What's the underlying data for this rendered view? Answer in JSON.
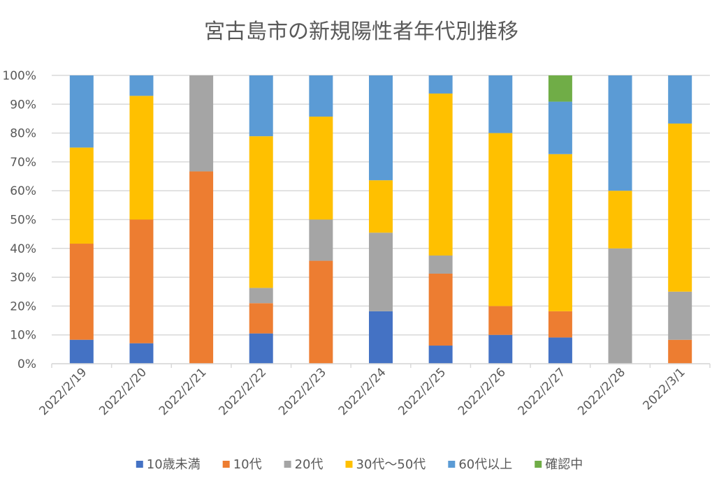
{
  "chart_data": {
    "type": "bar",
    "stacked": "percent",
    "title": "宮古島市の新規陽性者年代別推移",
    "xlabel": "",
    "ylabel": "",
    "ylim": [
      0,
      100
    ],
    "yticks": [
      "0%",
      "10%",
      "20%",
      "30%",
      "40%",
      "50%",
      "60%",
      "70%",
      "80%",
      "90%",
      "100%"
    ],
    "grid": true,
    "legend_position": "bottom",
    "categories": [
      "2022/2/19",
      "2022/2/20",
      "2022/2/21",
      "2022/2/22",
      "2022/2/23",
      "2022/2/24",
      "2022/2/25",
      "2022/2/26",
      "2022/2/27",
      "2022/2/28",
      "2022/3/1"
    ],
    "series": [
      {
        "name": "10歳未満",
        "color": "#4472c4",
        "values": [
          8.3,
          7.1,
          0,
          10.5,
          0,
          18.2,
          6.3,
          10.0,
          9.1,
          0,
          0
        ]
      },
      {
        "name": "10代",
        "color": "#ed7d31",
        "values": [
          33.3,
          42.9,
          66.7,
          10.5,
          35.7,
          0,
          25.0,
          10.0,
          9.1,
          0,
          8.3
        ]
      },
      {
        "name": "20代",
        "color": "#a5a5a5",
        "values": [
          0,
          0,
          33.3,
          5.3,
          14.3,
          27.3,
          6.3,
          0,
          0,
          40.0,
          16.7
        ]
      },
      {
        "name": "30代～50代",
        "color": "#ffc000",
        "values": [
          33.3,
          42.9,
          0,
          52.6,
          35.7,
          18.2,
          56.3,
          60.0,
          54.5,
          20.0,
          58.3
        ]
      },
      {
        "name": "60代以上",
        "color": "#5b9bd5",
        "values": [
          25.0,
          7.1,
          0,
          21.1,
          14.3,
          36.4,
          6.3,
          20.0,
          18.2,
          40.0,
          16.7
        ]
      },
      {
        "name": "確認中",
        "color": "#70ad47",
        "values": [
          0,
          0,
          0,
          0,
          0,
          0,
          0,
          0,
          9.1,
          0,
          0
        ]
      }
    ]
  }
}
